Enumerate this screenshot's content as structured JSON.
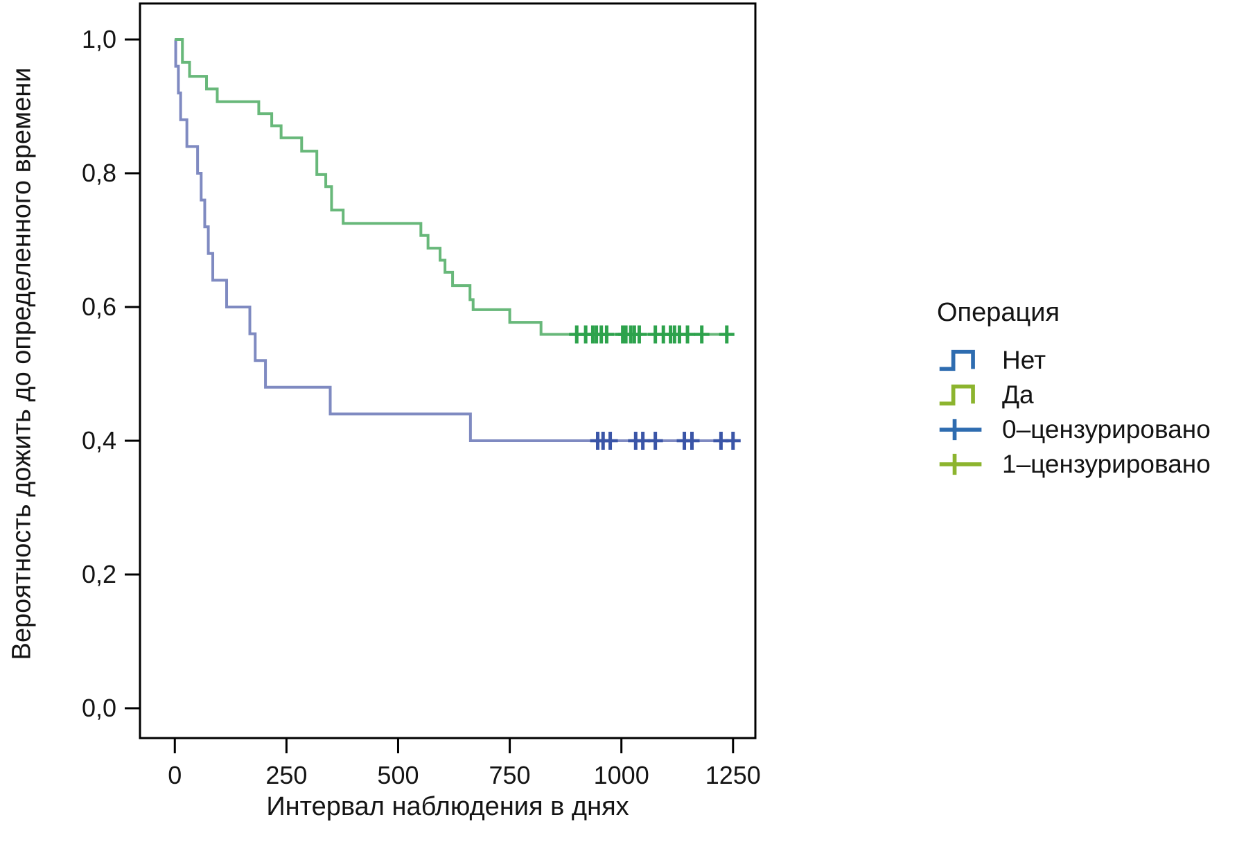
{
  "page": {
    "background": "#ffffff"
  },
  "chart_data": {
    "type": "line",
    "variant": "kaplan_meier_step",
    "title": "",
    "xlabel": "Интервал наблюдения в днях",
    "ylabel": "Вероятность дожить до определенного времени",
    "x_ticks": [
      0,
      250,
      500,
      750,
      1000,
      1250
    ],
    "x_tick_labels": [
      "0",
      "250",
      "500",
      "750",
      "1000",
      "1250"
    ],
    "y_tick_values": [
      0.0,
      0.2,
      0.4,
      0.6,
      0.8,
      1.0
    ],
    "y_tick_labels": [
      "0,0",
      "0,2",
      "0,4",
      "0,6",
      "0,8",
      "1,0"
    ],
    "xlim": [
      -78,
      1300
    ],
    "ylim": [
      -0.0446,
      1.0539
    ],
    "grid": false,
    "legend_position": "right",
    "axis_color": "#000000",
    "series": [
      {
        "name": "Нет",
        "group": "0",
        "line_color": "#7f8ac1",
        "censor_color": "#3a55a7",
        "steps": [
          [
            0,
            1.0
          ],
          [
            2,
            0.96
          ],
          [
            8,
            0.92
          ],
          [
            13,
            0.88
          ],
          [
            27,
            0.84
          ],
          [
            51,
            0.8
          ],
          [
            59,
            0.76
          ],
          [
            67,
            0.72
          ],
          [
            75,
            0.68
          ],
          [
            85,
            0.64
          ],
          [
            116,
            0.6
          ],
          [
            168,
            0.56
          ],
          [
            180,
            0.52
          ],
          [
            203,
            0.48
          ],
          [
            348,
            0.44
          ],
          [
            662,
            0.4
          ]
        ],
        "end_time": 1262,
        "final_value": 0.4,
        "censored": [
          947,
          959,
          975,
          1032,
          1048,
          1076,
          1141,
          1158,
          1223,
          1250
        ]
      },
      {
        "name": "Да",
        "group": "1",
        "line_color": "#68b87a",
        "censor_color": "#2da24c",
        "steps": [
          [
            0,
            1.0
          ],
          [
            17,
            0.966
          ],
          [
            33,
            0.945
          ],
          [
            71,
            0.926
          ],
          [
            95,
            0.907
          ],
          [
            188,
            0.889
          ],
          [
            217,
            0.871
          ],
          [
            238,
            0.853
          ],
          [
            284,
            0.833
          ],
          [
            318,
            0.798
          ],
          [
            338,
            0.78
          ],
          [
            351,
            0.745
          ],
          [
            377,
            0.725
          ],
          [
            551,
            0.707
          ],
          [
            567,
            0.688
          ],
          [
            594,
            0.67
          ],
          [
            605,
            0.652
          ],
          [
            622,
            0.632
          ],
          [
            661,
            0.611
          ],
          [
            668,
            0.596
          ],
          [
            750,
            0.577
          ],
          [
            820,
            0.559
          ]
        ],
        "end_time": 1251,
        "final_value": 0.559,
        "censored": [
          900,
          920,
          936,
          944,
          955,
          967,
          1003,
          1010,
          1021,
          1029,
          1040,
          1076,
          1094,
          1110,
          1119,
          1130,
          1148,
          1180,
          1236
        ]
      }
    ]
  },
  "legend": {
    "title": "Операция",
    "items": [
      {
        "label": "Нет",
        "symbol": "step",
        "color": "#2e6cb0"
      },
      {
        "label": "Да",
        "symbol": "step",
        "color": "#8cb42e"
      },
      {
        "label": "0–цензурировано",
        "symbol": "plus",
        "color": "#2e6cb0"
      },
      {
        "label": "1–цензурировано",
        "symbol": "plus",
        "color": "#8cb42e"
      }
    ]
  }
}
